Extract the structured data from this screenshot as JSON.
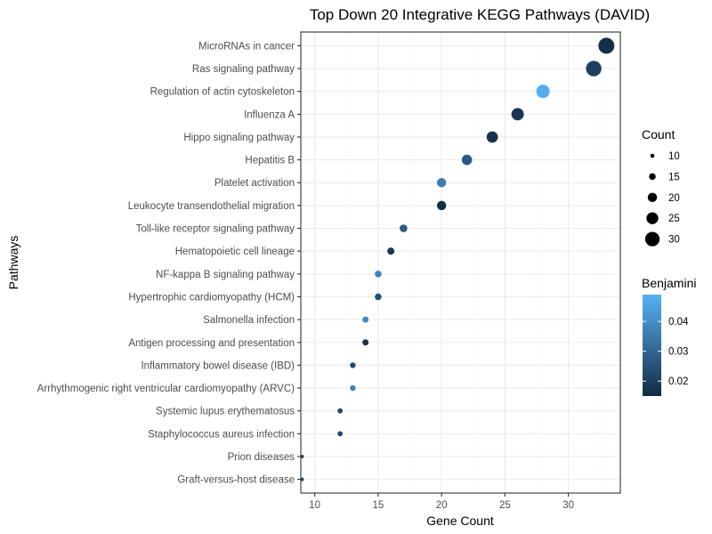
{
  "chart_data": {
    "type": "scatter",
    "title": "Top Down 20 Integrative KEGG Pathways (DAVID)",
    "xlabel": "Gene Count",
    "ylabel": "Pathways",
    "xlim": [
      8.9,
      34.1
    ],
    "xticks": [
      10,
      15,
      20,
      25,
      30
    ],
    "grid": true,
    "points": [
      {
        "pathway": "MicroRNAs in cancer",
        "count": 33,
        "benjamini": 0.016
      },
      {
        "pathway": "Ras signaling pathway",
        "count": 32,
        "benjamini": 0.02
      },
      {
        "pathway": "Regulation of actin cytoskeleton",
        "count": 28,
        "benjamini": 0.048
      },
      {
        "pathway": "Influenza A",
        "count": 26,
        "benjamini": 0.018
      },
      {
        "pathway": "Hippo signaling pathway",
        "count": 24,
        "benjamini": 0.017
      },
      {
        "pathway": "Hepatitis B",
        "count": 22,
        "benjamini": 0.027
      },
      {
        "pathway": "Platelet activation",
        "count": 20,
        "benjamini": 0.036
      },
      {
        "pathway": "Leukocyte transendothelial migration",
        "count": 20,
        "benjamini": 0.016
      },
      {
        "pathway": "Toll-like receptor signaling pathway",
        "count": 17,
        "benjamini": 0.028
      },
      {
        "pathway": "Hematopoietic cell lineage",
        "count": 16,
        "benjamini": 0.018
      },
      {
        "pathway": "NF-kappa B signaling pathway",
        "count": 15,
        "benjamini": 0.038
      },
      {
        "pathway": "Hypertrophic cardiomyopathy (HCM)",
        "count": 15,
        "benjamini": 0.024
      },
      {
        "pathway": "Salmonella infection",
        "count": 14,
        "benjamini": 0.038
      },
      {
        "pathway": "Antigen processing and presentation",
        "count": 14,
        "benjamini": 0.017
      },
      {
        "pathway": "Inflammatory bowel disease (IBD)",
        "count": 13,
        "benjamini": 0.022
      },
      {
        "pathway": "Arrhythmogenic right ventricular cardiomyopathy (ARVC)",
        "count": 13,
        "benjamini": 0.036
      },
      {
        "pathway": "Systemic lupus erythematosus",
        "count": 12,
        "benjamini": 0.022
      },
      {
        "pathway": "Staphylococcus aureus infection",
        "count": 12,
        "benjamini": 0.022
      },
      {
        "pathway": "Prion diseases",
        "count": 9,
        "benjamini": 0.022
      },
      {
        "pathway": "Graft-versus-host disease",
        "count": 9,
        "benjamini": 0.02
      }
    ],
    "legend_size": {
      "title": "Count",
      "values": [
        10,
        15,
        20,
        25,
        30
      ]
    },
    "legend_color": {
      "title": "Benjamini",
      "range": [
        0.015,
        0.049
      ],
      "ticks": [
        0.02,
        0.03,
        0.04
      ],
      "tick_labels": [
        "0.02",
        "0.03",
        "0.04"
      ],
      "low_color": "#132B43",
      "high_color": "#56B1F7"
    }
  }
}
